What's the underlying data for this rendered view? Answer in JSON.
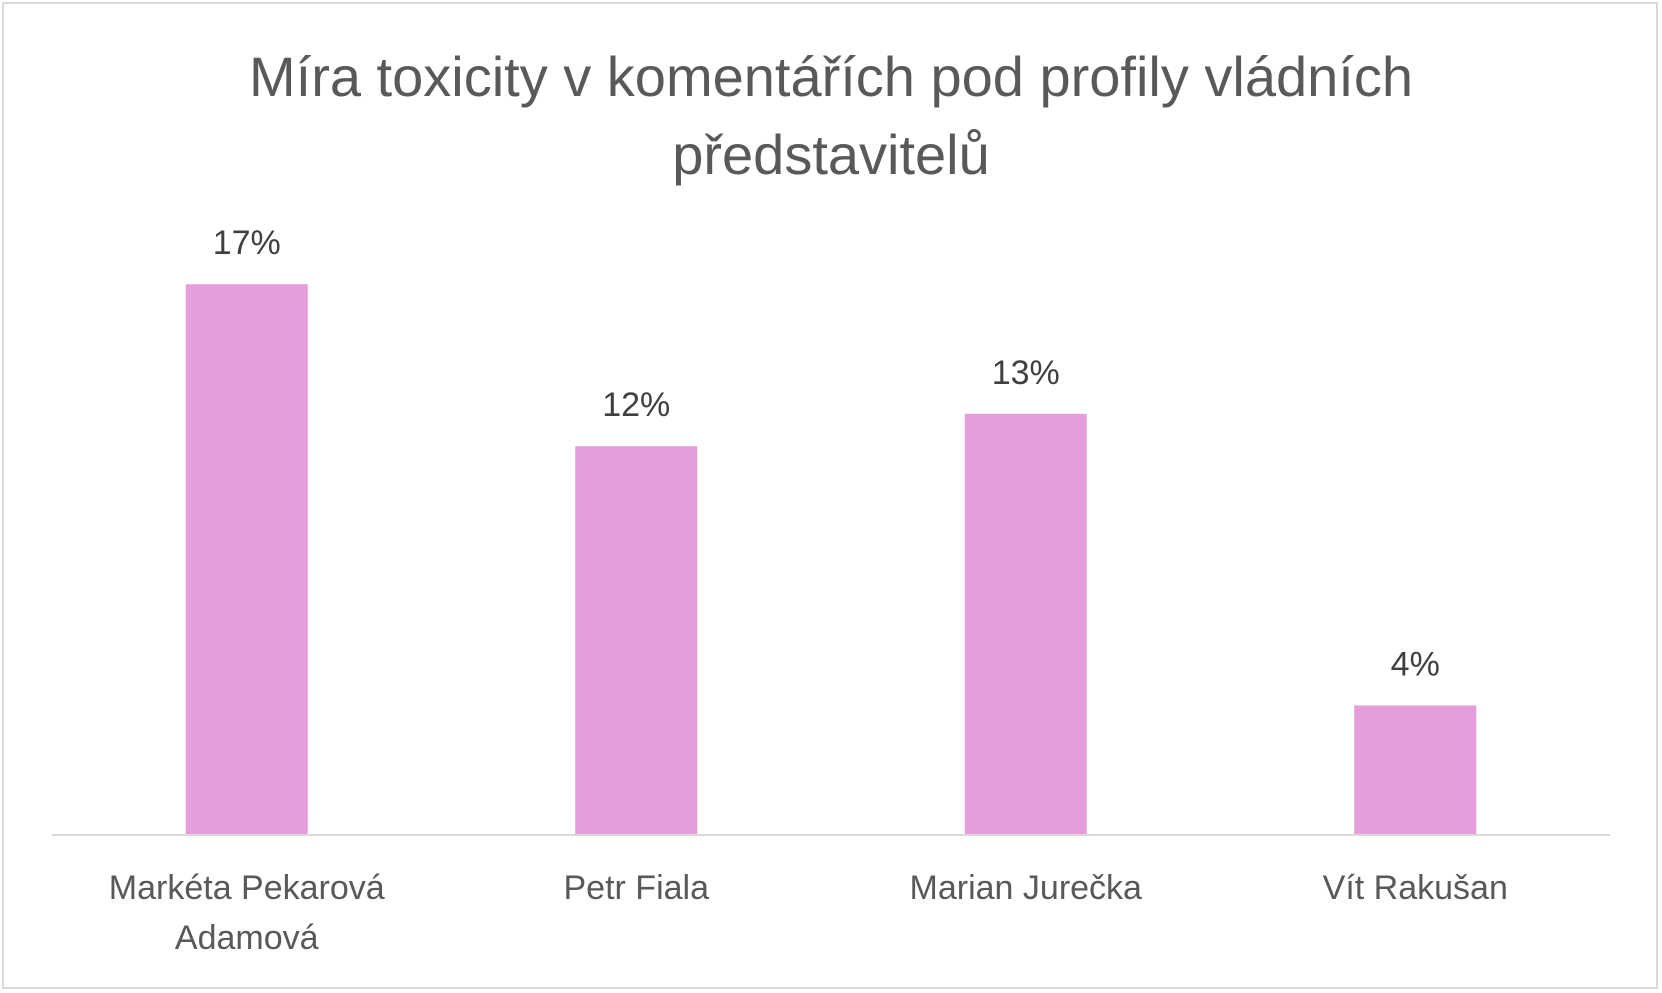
{
  "chart_data": {
    "type": "bar",
    "title": "Míra toxicity v komentářích pod profily vládních představitelů",
    "categories": [
      [
        "Markéta Pekarová",
        "Adamová"
      ],
      [
        "Petr Fiala"
      ],
      [
        "Marian Jurečka"
      ],
      [
        "Vít Rakušan"
      ]
    ],
    "values": [
      17,
      12,
      13,
      4
    ],
    "data_labels": [
      "17%",
      "12%",
      "13%",
      "4%"
    ],
    "ylim": [
      0,
      20
    ],
    "grid": false,
    "legend": "none",
    "bar_color": "#e49edb"
  }
}
